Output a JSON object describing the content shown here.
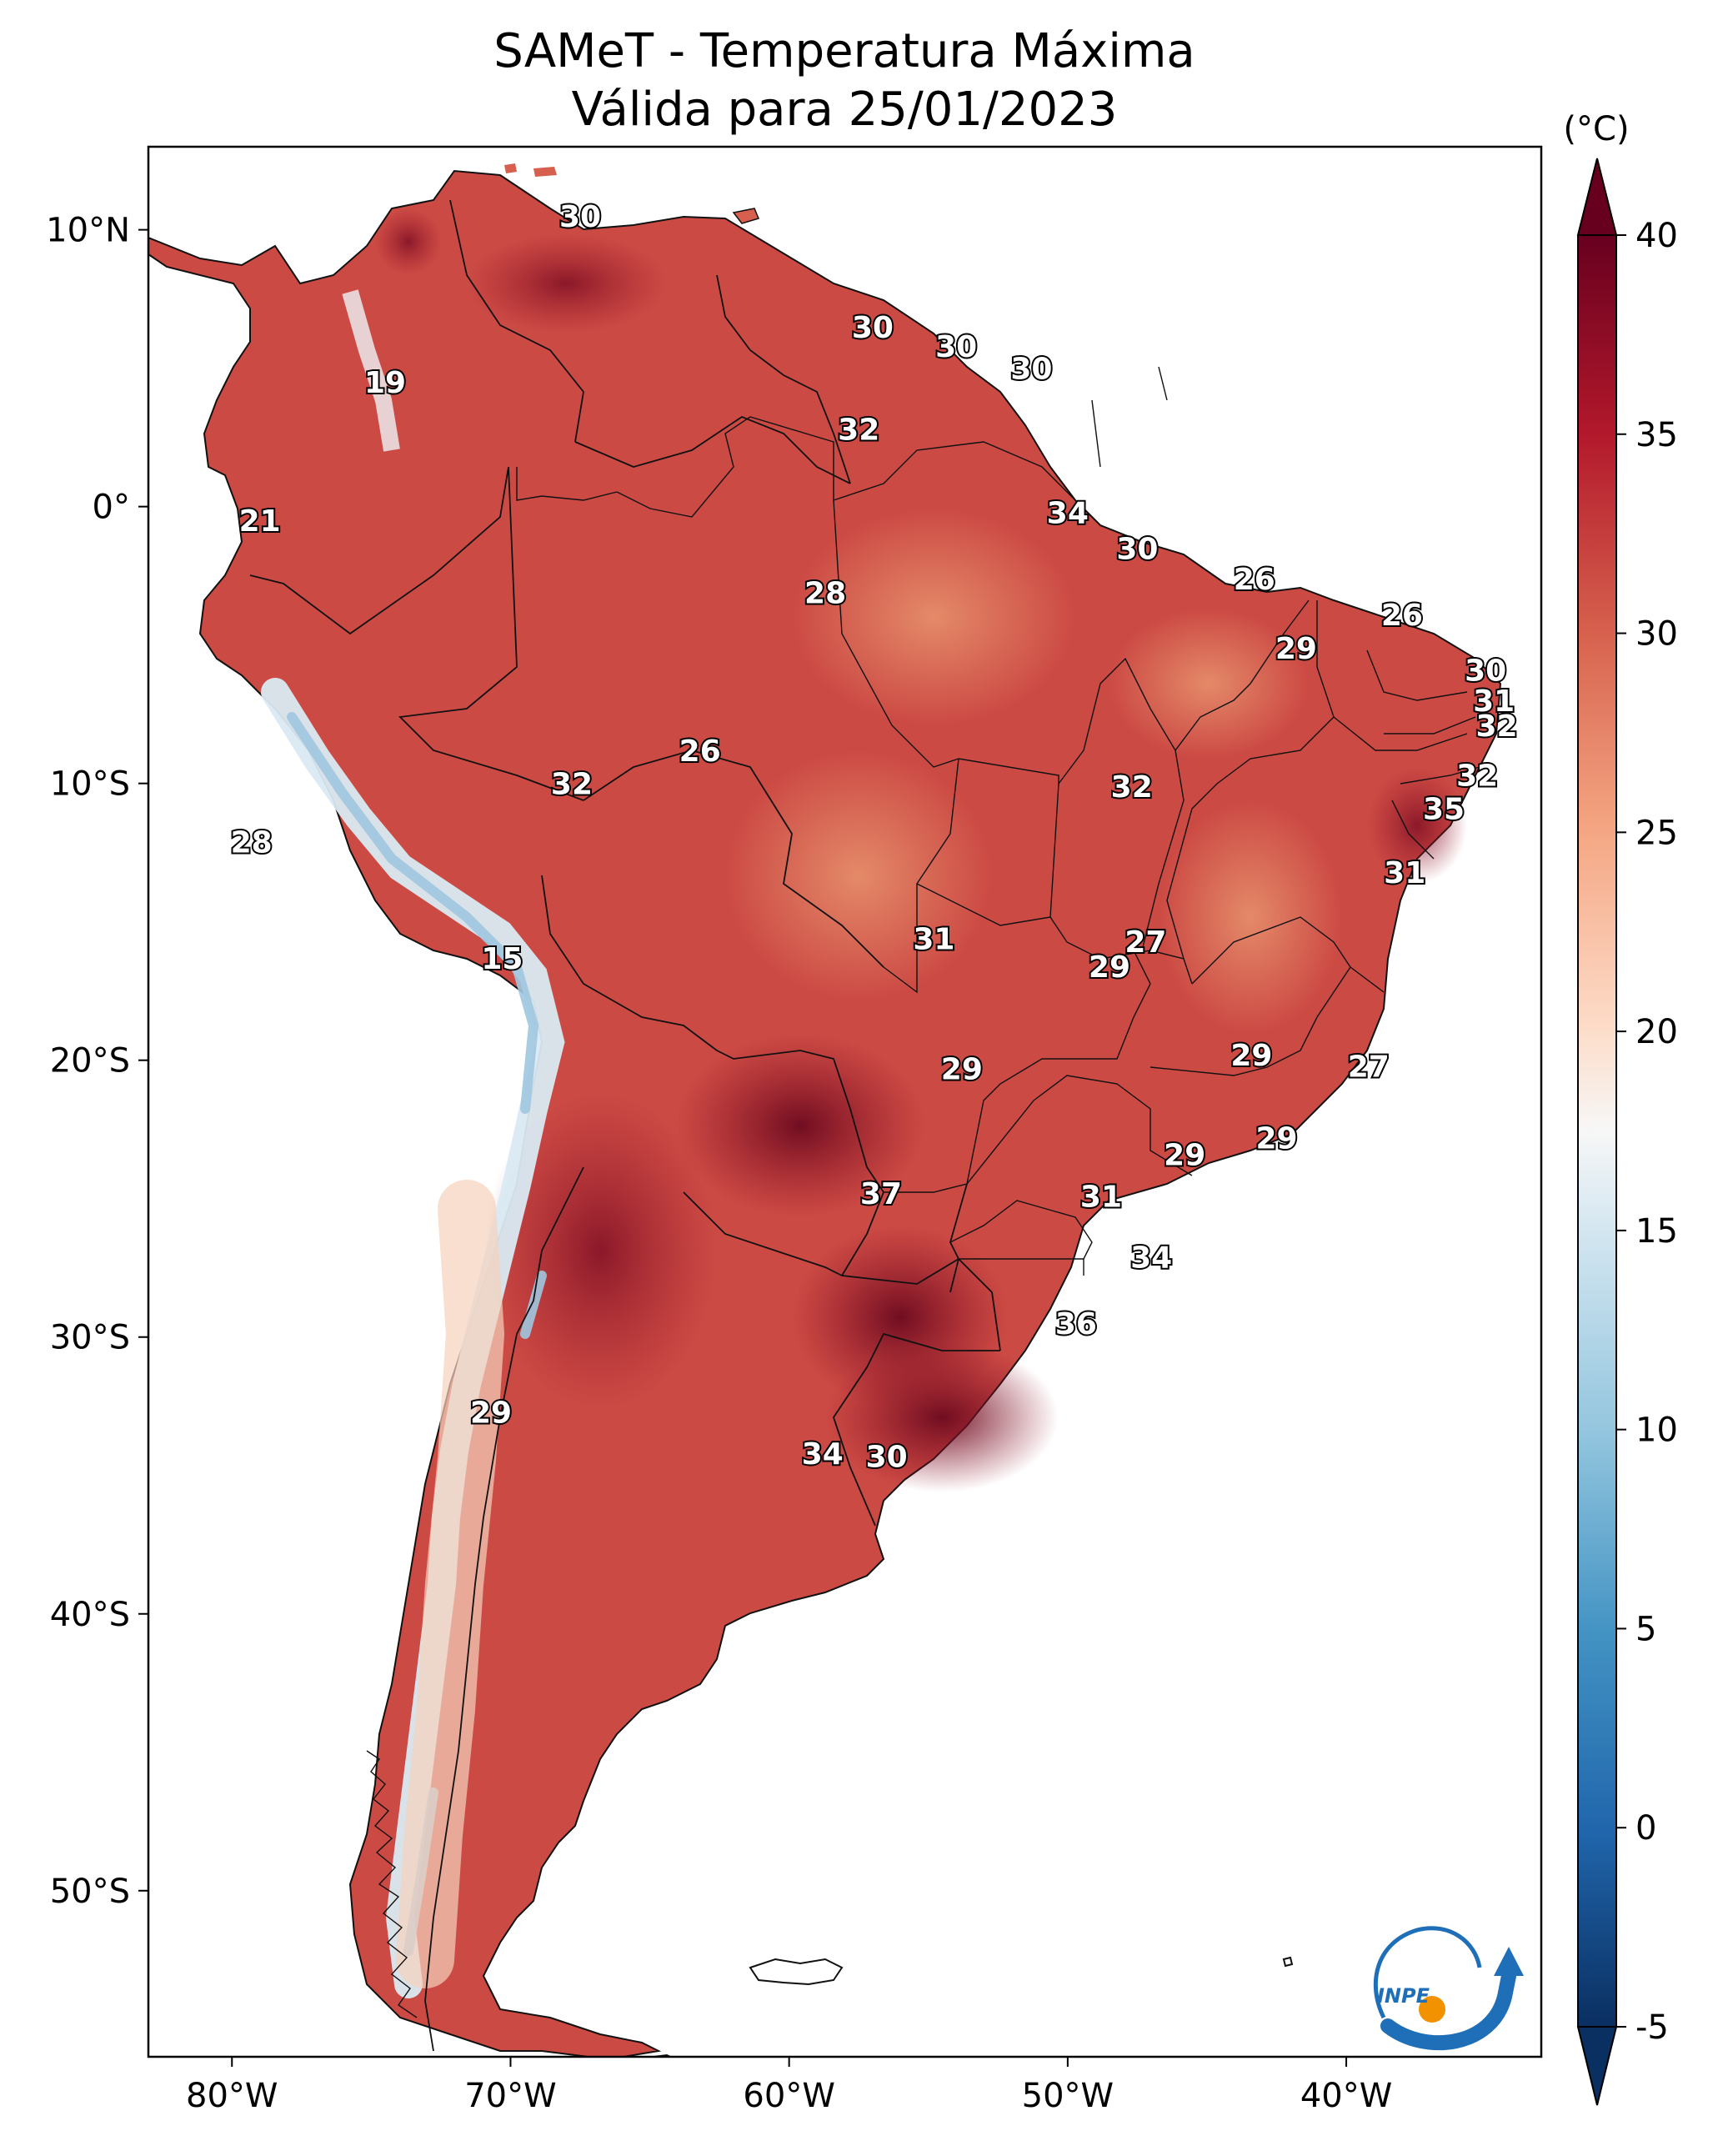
{
  "title": {
    "line1": "SAMeT - Temperatura Máxima",
    "line2": "Válida para 25/01/2023"
  },
  "axes": {
    "lon_ticks": [
      "80°W",
      "70°W",
      "60°W",
      "50°W",
      "40°W"
    ],
    "lat_ticks": [
      "10°N",
      "0°",
      "10°S",
      "20°S",
      "30°S",
      "40°S",
      "50°S"
    ],
    "lon_range": [
      -83,
      -33
    ],
    "lat_range": [
      -56,
      13
    ]
  },
  "colorbar": {
    "unit": "(°C)",
    "ticks": [
      "40",
      "35",
      "30",
      "25",
      "20",
      "15",
      "10",
      "5",
      "0",
      "-5"
    ],
    "range": [
      -5,
      40
    ],
    "extend": "both",
    "colormap": "RdBu_r"
  },
  "logo": {
    "text": "INPE",
    "colors": {
      "blue": "#1e6fb8",
      "orange": "#f39200"
    }
  },
  "map_labels": [
    {
      "value": "30",
      "lon": -67.5,
      "lat": 10.5
    },
    {
      "value": "19",
      "lon": -74.5,
      "lat": 4.5
    },
    {
      "value": "21",
      "lon": -79.0,
      "lat": -0.5
    },
    {
      "value": "30",
      "lon": -57.0,
      "lat": 6.5
    },
    {
      "value": "30",
      "lon": -54.0,
      "lat": 5.8
    },
    {
      "value": "30",
      "lon": -51.3,
      "lat": 5.0
    },
    {
      "value": "32",
      "lon": -57.5,
      "lat": 2.8
    },
    {
      "value": "34",
      "lon": -50.0,
      "lat": -0.2
    },
    {
      "value": "30",
      "lon": -47.5,
      "lat": -1.5
    },
    {
      "value": "28",
      "lon": -58.7,
      "lat": -3.1
    },
    {
      "value": "26",
      "lon": -43.3,
      "lat": -2.6
    },
    {
      "value": "26",
      "lon": -38.0,
      "lat": -3.9
    },
    {
      "value": "29",
      "lon": -41.8,
      "lat": -5.1
    },
    {
      "value": "30",
      "lon": -35.0,
      "lat": -5.9
    },
    {
      "value": "31",
      "lon": -34.7,
      "lat": -7.0
    },
    {
      "value": "32",
      "lon": -34.6,
      "lat": -7.9
    },
    {
      "value": "26",
      "lon": -63.2,
      "lat": -8.8
    },
    {
      "value": "32",
      "lon": -67.8,
      "lat": -10.0
    },
    {
      "value": "32",
      "lon": -47.7,
      "lat": -10.1
    },
    {
      "value": "32",
      "lon": -35.3,
      "lat": -9.7
    },
    {
      "value": "35",
      "lon": -36.5,
      "lat": -10.9
    },
    {
      "value": "28",
      "lon": -79.3,
      "lat": -12.1
    },
    {
      "value": "31",
      "lon": -37.9,
      "lat": -13.2
    },
    {
      "value": "15",
      "lon": -70.3,
      "lat": -16.3
    },
    {
      "value": "31",
      "lon": -54.8,
      "lat": -15.6
    },
    {
      "value": "27",
      "lon": -47.2,
      "lat": -15.7
    },
    {
      "value": "29",
      "lon": -48.5,
      "lat": -16.6
    },
    {
      "value": "29",
      "lon": -53.8,
      "lat": -20.3
    },
    {
      "value": "29",
      "lon": -43.4,
      "lat": -19.8
    },
    {
      "value": "27",
      "lon": -39.2,
      "lat": -20.2
    },
    {
      "value": "29",
      "lon": -42.5,
      "lat": -22.8
    },
    {
      "value": "29",
      "lon": -45.8,
      "lat": -23.4
    },
    {
      "value": "37",
      "lon": -56.7,
      "lat": -24.8
    },
    {
      "value": "31",
      "lon": -48.8,
      "lat": -24.9
    },
    {
      "value": "34",
      "lon": -47.0,
      "lat": -27.1
    },
    {
      "value": "36",
      "lon": -49.7,
      "lat": -29.5
    },
    {
      "value": "29",
      "lon": -70.7,
      "lat": -32.7
    },
    {
      "value": "34",
      "lon": -58.8,
      "lat": -34.2
    },
    {
      "value": "30",
      "lon": -56.5,
      "lat": -34.3
    }
  ]
}
